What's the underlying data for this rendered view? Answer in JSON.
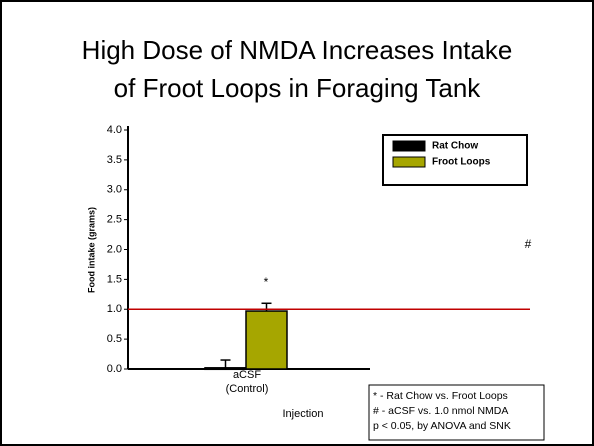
{
  "chart_data": {
    "type": "bar",
    "title_lines": [
      "High Dose of NMDA Increases Intake",
      "of Froot Loops in Foraging Tank"
    ],
    "ylabel": "Food intake (grams)",
    "xlabel": "Injection",
    "categories": [
      [
        "aCSF",
        "(Control)"
      ]
    ],
    "series": [
      {
        "name": "Rat Chow",
        "color": "#000000",
        "values": [
          0.02
        ],
        "errors": [
          0.13
        ]
      },
      {
        "name": "Froot Loops",
        "color": "#a6a600",
        "values": [
          0.97
        ],
        "errors": [
          0.13
        ]
      }
    ],
    "ylim": [
      0,
      4.0
    ],
    "yticks": [
      {
        "value": 0,
        "label": "0.0"
      },
      {
        "value": 0.5,
        "label": "0.5"
      },
      {
        "value": 1.0,
        "label": "1.0"
      },
      {
        "value": 1.5,
        "label": "1.5"
      },
      {
        "value": 2.0,
        "label": "2.0"
      },
      {
        "value": 2.5,
        "label": "2.5"
      },
      {
        "value": 3.0,
        "label": "3.0"
      },
      {
        "value": 3.5,
        "label": "3.5"
      },
      {
        "value": 4.0,
        "label": "4.0"
      }
    ],
    "reference_line": {
      "value": 1.0,
      "color": "#c00000"
    },
    "annotations": [
      "*",
      "#"
    ],
    "legend": "upper right",
    "notes": [
      "* - Rat Chow vs. Froot Loops",
      "# - aCSF vs. 1.0 nmol NMDA",
      "p < 0.05, by ANOVA and SNK"
    ]
  }
}
